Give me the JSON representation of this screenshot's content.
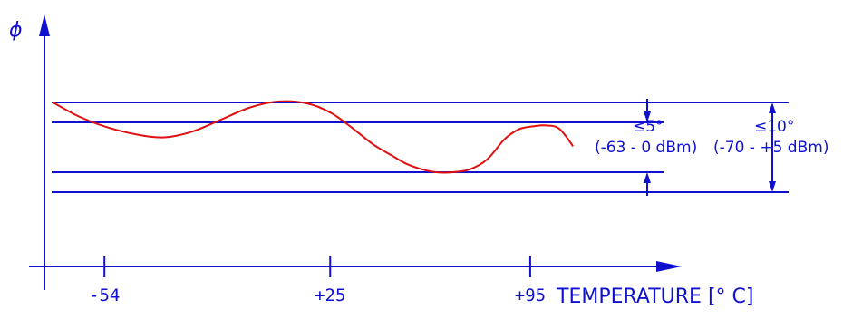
{
  "chart_data": {
    "type": "line",
    "y_axis_symbol": "ϕ",
    "xlabel": "TEMPERATURE [° C]",
    "x_ticks": [
      "-54",
      "+25",
      "+95"
    ],
    "x_tick_values": [
      -54,
      25,
      95
    ],
    "xlim": [
      -75,
      148
    ],
    "ylim": [
      0,
      20
    ],
    "grid": false,
    "series": [
      {
        "color": "#e01010",
        "x": [
          -72,
          -63,
          -54,
          -43,
          -33,
          -23,
          -13,
          -3,
          7,
          17,
          25,
          32,
          40,
          47,
          52,
          57,
          62,
          68,
          74,
          80,
          86,
          91,
          96,
          100,
          105,
          110
        ],
        "y": [
          15.0,
          13.6,
          12.6,
          11.8,
          11.5,
          12.1,
          13.3,
          14.5,
          15.1,
          14.9,
          14.0,
          12.6,
          10.8,
          9.6,
          8.8,
          8.3,
          8.0,
          8.0,
          8.3,
          9.3,
          11.3,
          12.3,
          12.6,
          12.7,
          12.4,
          10.6
        ]
      }
    ],
    "bands": [
      {
        "name": "inner",
        "lower": 8,
        "upper": 13,
        "label_line1": "≤5°",
        "label_line2": "(-63 - 0 dBm)"
      },
      {
        "name": "outer",
        "lower": 6,
        "upper": 15,
        "label_line1": "≤10°",
        "label_line2": "(-70 - +5 dBm)"
      }
    ]
  }
}
